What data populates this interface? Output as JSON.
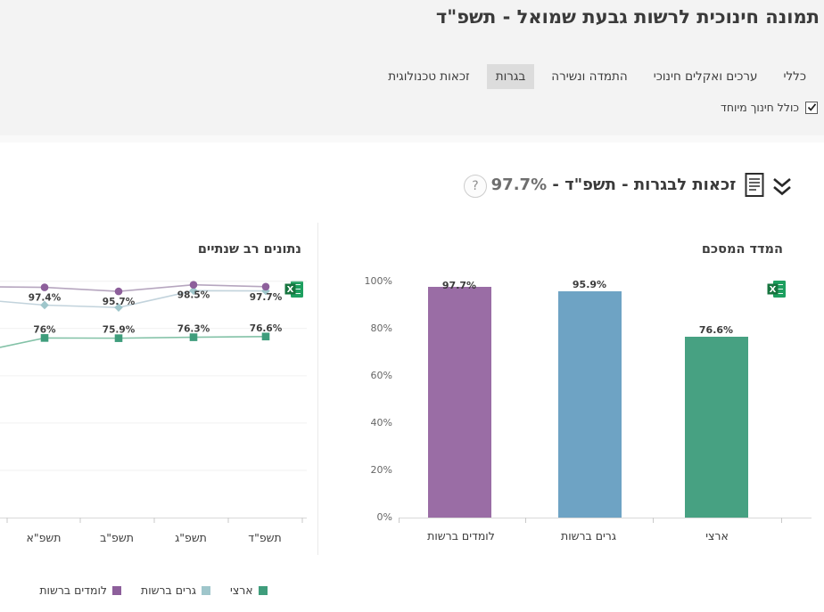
{
  "window_title": "תמונה חינוכית לרשות גבעת שמואל - תשפ\"ד",
  "tabs": {
    "items": [
      {
        "label": "כללי",
        "selected": false
      },
      {
        "label": "ערכים ואקלים חינוכי",
        "selected": false
      },
      {
        "label": "התמדה ונשירה",
        "selected": false
      },
      {
        "label": "בגרות",
        "selected": true
      },
      {
        "label": "זכאות טכנולוגית",
        "selected": false
      }
    ]
  },
  "filter": {
    "label": "כולל חינוך מיוחד",
    "checked": true
  },
  "section": {
    "title": "זכאות לבגרות - תשפ\"ד",
    "separator": " - ",
    "value": "97.7%",
    "icons": {
      "help": "question-mark-circle",
      "report": "document-report",
      "collapse": "double-chevron-down"
    }
  },
  "export_icon": "excel-export",
  "colors": {
    "header_band": "#f3f3f3",
    "tab_selected_bg": "#dcdcdc",
    "accent_purple": "#9a6da5",
    "accent_blue": "#6ea3c4",
    "accent_green": "#47a182"
  },
  "chart_data": [
    {
      "type": "line",
      "title": "נתונים רב שנתיים",
      "categories": [
        "תשפ\"א",
        "תשפ\"ב",
        "תשפ\"ג",
        "תשפ\"ד"
      ],
      "series": [
        {
          "name": "לומדים ברשות",
          "marker": "circle",
          "marker_color": "#8d5f9b",
          "line_color": "#b6a6bf",
          "values": [
            97.4,
            95.7,
            98.5,
            97.7
          ],
          "labels_visible": true,
          "label_position": "below",
          "edge_value": 97.6
        },
        {
          "name": "גרים ברשות",
          "marker": "diamond",
          "marker_color": "#9fc6cb",
          "line_color": "#c2d3dc",
          "values": [
            89.9,
            88.9,
            96.0,
            95.9
          ],
          "labels_visible": false,
          "values_estimated": true,
          "edge_value": 91.5
        },
        {
          "name": "ארצי",
          "marker": "square",
          "marker_color": "#3f9d7c",
          "line_color": "#83c2a7",
          "values": [
            76,
            75.9,
            76.3,
            76.6
          ],
          "labels_visible": true,
          "label_position": "above",
          "edge_value": 72
        }
      ],
      "ylim": [
        0,
        100
      ],
      "grid": "horizontal",
      "legend_position": "bottom",
      "clipped_left": true
    },
    {
      "type": "bar",
      "title": "המדד המסכם",
      "categories": [
        "לומדים ברשות",
        "גרים ברשות",
        "ארצי"
      ],
      "values": [
        97.7,
        95.9,
        76.6
      ],
      "colors": [
        "#9a6da5",
        "#6ea3c4",
        "#47a182"
      ],
      "yticks": [
        "100%",
        "80%",
        "60%",
        "40%",
        "20%",
        "0%"
      ],
      "ylim": [
        0,
        100
      ],
      "grid": false,
      "label_on_bar": [
        true,
        false,
        false
      ]
    }
  ]
}
